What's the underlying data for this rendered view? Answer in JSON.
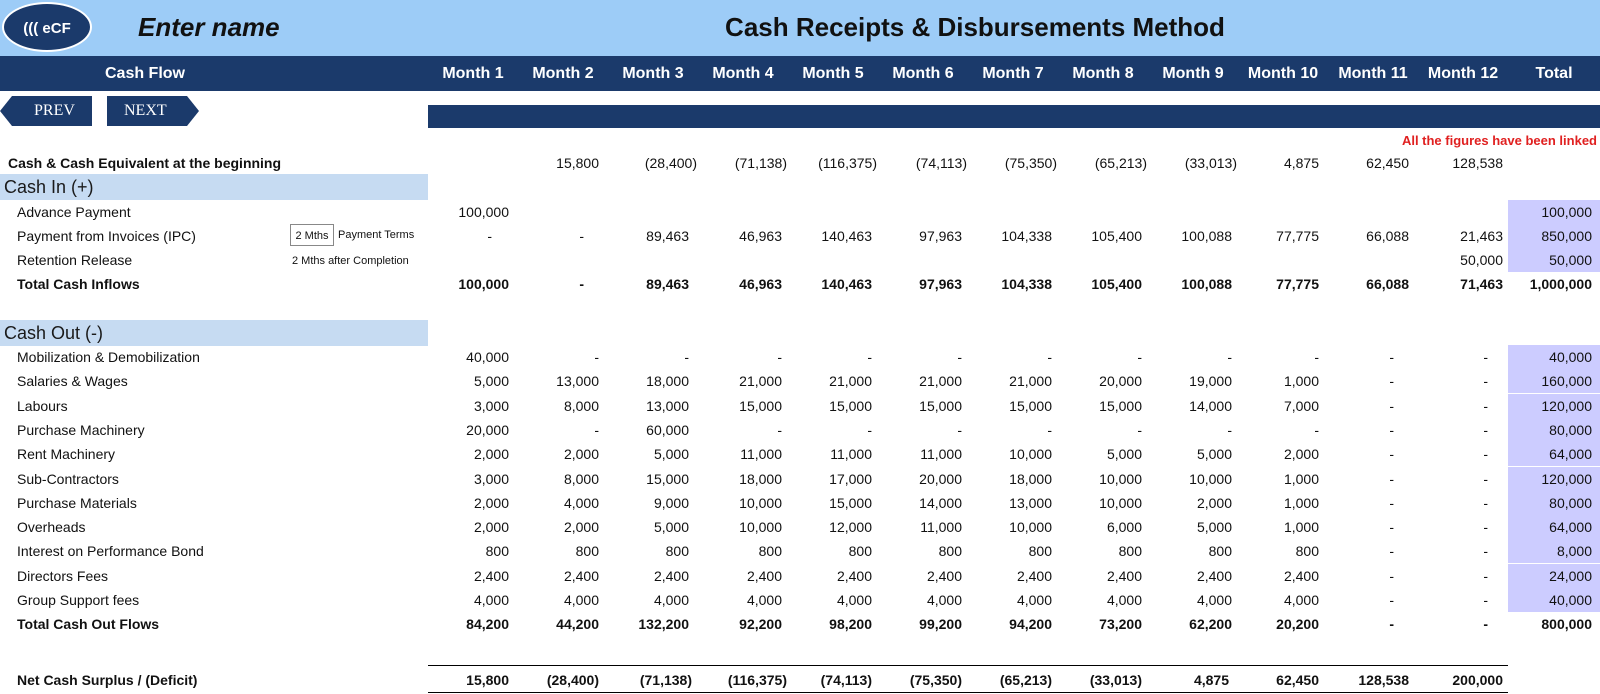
{
  "header": {
    "logo_text": "((( eCF",
    "entity_name": "Enter name",
    "title": "Cash Receipts & Disbursements Method"
  },
  "columns": {
    "first": "Cash Flow",
    "months": [
      "Month 1",
      "Month 2",
      "Month 3",
      "Month 4",
      "Month 5",
      "Month 6",
      "Month 7",
      "Month 8",
      "Month 9",
      "Month 10",
      "Month 11",
      "Month 12"
    ],
    "total": "Total"
  },
  "nav": {
    "prev": "PREV",
    "next": "NEXT"
  },
  "note": "All the figures have been linked",
  "opening": {
    "label": "Cash & Cash Equivalent at the beginning",
    "values": [
      "",
      "15,800",
      "(28,400)",
      "(71,138)",
      "(116,375)",
      "(74,113)",
      "(75,350)",
      "(65,213)",
      "(33,013)",
      "4,875",
      "62,450",
      "128,538"
    ]
  },
  "cash_in": {
    "title": "Cash In (+)",
    "payment_terms_value": "2 Mths",
    "payment_terms_label": "Payment Terms",
    "retention_note": "2 Mths after Completion",
    "rows": [
      {
        "label": "Advance Payment",
        "values": [
          "100,000",
          "",
          "",
          "",
          "",
          "",
          "",
          "",
          "",
          "",
          "",
          ""
        ],
        "total": "100,000"
      },
      {
        "label": "Payment from Invoices (IPC)",
        "values": [
          "-",
          "-",
          "89,463",
          "46,963",
          "140,463",
          "97,963",
          "104,338",
          "105,400",
          "100,088",
          "77,775",
          "66,088",
          "21,463"
        ],
        "total": "850,000"
      },
      {
        "label": "Retention Release",
        "values": [
          "",
          "",
          "",
          "",
          "",
          "",
          "",
          "",
          "",
          "",
          "",
          "50,000"
        ],
        "total": "50,000"
      }
    ],
    "total_row": {
      "label": "Total Cash Inflows",
      "values": [
        "100,000",
        "-",
        "89,463",
        "46,963",
        "140,463",
        "97,963",
        "104,338",
        "105,400",
        "100,088",
        "77,775",
        "66,088",
        "71,463"
      ],
      "total": "1,000,000"
    }
  },
  "cash_out": {
    "title": "Cash Out (-)",
    "rows": [
      {
        "label": "Mobilization & Demobilization",
        "values": [
          "40,000",
          "-",
          "-",
          "-",
          "-",
          "-",
          "-",
          "-",
          "-",
          "-",
          "-",
          "-"
        ],
        "total": "40,000"
      },
      {
        "label": "Salaries & Wages",
        "values": [
          "5,000",
          "13,000",
          "18,000",
          "21,000",
          "21,000",
          "21,000",
          "21,000",
          "20,000",
          "19,000",
          "1,000",
          "-",
          "-"
        ],
        "total": "160,000"
      },
      {
        "label": "Labours",
        "values": [
          "3,000",
          "8,000",
          "13,000",
          "15,000",
          "15,000",
          "15,000",
          "15,000",
          "15,000",
          "14,000",
          "7,000",
          "-",
          "-"
        ],
        "total": "120,000"
      },
      {
        "label": "Purchase Machinery",
        "values": [
          "20,000",
          "-",
          "60,000",
          "-",
          "-",
          "-",
          "-",
          "-",
          "-",
          "-",
          "-",
          "-"
        ],
        "total": "80,000"
      },
      {
        "label": "Rent Machinery",
        "values": [
          "2,000",
          "2,000",
          "5,000",
          "11,000",
          "11,000",
          "11,000",
          "10,000",
          "5,000",
          "5,000",
          "2,000",
          "-",
          "-"
        ],
        "total": "64,000"
      },
      {
        "label": "Sub-Contractors",
        "values": [
          "3,000",
          "8,000",
          "15,000",
          "18,000",
          "17,000",
          "20,000",
          "18,000",
          "10,000",
          "10,000",
          "1,000",
          "-",
          "-"
        ],
        "total": "120,000"
      },
      {
        "label": "Purchase Materials",
        "values": [
          "2,000",
          "4,000",
          "9,000",
          "10,000",
          "15,000",
          "14,000",
          "13,000",
          "10,000",
          "2,000",
          "1,000",
          "-",
          "-"
        ],
        "total": "80,000"
      },
      {
        "label": "Overheads",
        "values": [
          "2,000",
          "2,000",
          "5,000",
          "10,000",
          "12,000",
          "11,000",
          "10,000",
          "6,000",
          "5,000",
          "1,000",
          "-",
          "-"
        ],
        "total": "64,000"
      },
      {
        "label": "Interest on Performance Bond",
        "values": [
          "800",
          "800",
          "800",
          "800",
          "800",
          "800",
          "800",
          "800",
          "800",
          "800",
          "-",
          "-"
        ],
        "total": "8,000"
      },
      {
        "label": "Directors Fees",
        "values": [
          "2,400",
          "2,400",
          "2,400",
          "2,400",
          "2,400",
          "2,400",
          "2,400",
          "2,400",
          "2,400",
          "2,400",
          "-",
          "-"
        ],
        "total": "24,000"
      },
      {
        "label": "Group Support fees",
        "values": [
          "4,000",
          "4,000",
          "4,000",
          "4,000",
          "4,000",
          "4,000",
          "4,000",
          "4,000",
          "4,000",
          "4,000",
          "-",
          "-"
        ],
        "total": "40,000"
      }
    ],
    "total_row": {
      "label": "Total Cash Out Flows",
      "values": [
        "84,200",
        "44,200",
        "132,200",
        "92,200",
        "98,200",
        "99,200",
        "94,200",
        "73,200",
        "62,200",
        "20,200",
        "-",
        "-"
      ],
      "total": "800,000"
    }
  },
  "net": {
    "label": "Net Cash Surplus / (Deficit)",
    "values": [
      "15,800",
      "(28,400)",
      "(71,138)",
      "(116,375)",
      "(74,113)",
      "(75,350)",
      "(65,213)",
      "(33,013)",
      "4,875",
      "62,450",
      "128,538",
      "200,000"
    ]
  }
}
